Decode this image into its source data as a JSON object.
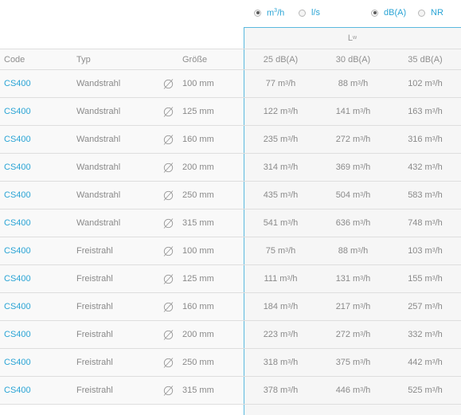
{
  "radios": {
    "flow_unit": [
      {
        "label_base": "m",
        "label_sup": "3",
        "label_tail": "/h",
        "checked": true
      },
      {
        "label": "l/s",
        "checked": false
      }
    ],
    "level_unit": [
      {
        "label": "dB(A)",
        "checked": true
      },
      {
        "label": "NR",
        "checked": false
      }
    ]
  },
  "lw_header": {
    "base": "L",
    "sub": "w"
  },
  "columns": {
    "code": "Code",
    "typ": "Typ",
    "groesse": "Größe",
    "levels": [
      "25 dB(A)",
      "30 dB(A)",
      "35 dB(A)"
    ]
  },
  "unit": {
    "base": "m",
    "sup": "3",
    "tail": "/h"
  },
  "rows": [
    {
      "code": "CS400",
      "typ": "Wandstrahl",
      "size": "100 mm",
      "values": [
        "77",
        "88",
        "102"
      ]
    },
    {
      "code": "CS400",
      "typ": "Wandstrahl",
      "size": "125 mm",
      "values": [
        "122",
        "141",
        "163"
      ]
    },
    {
      "code": "CS400",
      "typ": "Wandstrahl",
      "size": "160 mm",
      "values": [
        "235",
        "272",
        "316"
      ]
    },
    {
      "code": "CS400",
      "typ": "Wandstrahl",
      "size": "200 mm",
      "values": [
        "314",
        "369",
        "432"
      ]
    },
    {
      "code": "CS400",
      "typ": "Wandstrahl",
      "size": "250 mm",
      "values": [
        "435",
        "504",
        "583"
      ]
    },
    {
      "code": "CS400",
      "typ": "Wandstrahl",
      "size": "315 mm",
      "values": [
        "541",
        "636",
        "748"
      ]
    },
    {
      "code": "CS400",
      "typ": "Freistrahl",
      "size": "100 mm",
      "values": [
        "75",
        "88",
        "103"
      ]
    },
    {
      "code": "CS400",
      "typ": "Freistrahl",
      "size": "125 mm",
      "values": [
        "111",
        "131",
        "155"
      ]
    },
    {
      "code": "CS400",
      "typ": "Freistrahl",
      "size": "160 mm",
      "values": [
        "184",
        "217",
        "257"
      ]
    },
    {
      "code": "CS400",
      "typ": "Freistrahl",
      "size": "200 mm",
      "values": [
        "223",
        "272",
        "332"
      ]
    },
    {
      "code": "CS400",
      "typ": "Freistrahl",
      "size": "250 mm",
      "values": [
        "318",
        "375",
        "442"
      ]
    },
    {
      "code": "CS400",
      "typ": "Freistrahl",
      "size": "315 mm",
      "values": [
        "378",
        "446",
        "525"
      ]
    }
  ],
  "icons": {
    "diameter": "diameter-icon"
  },
  "colors": {
    "accent": "#2aa4d5",
    "text": "#8a8a8a",
    "divider": "#dedede",
    "panel_border": "#5ab9df"
  }
}
